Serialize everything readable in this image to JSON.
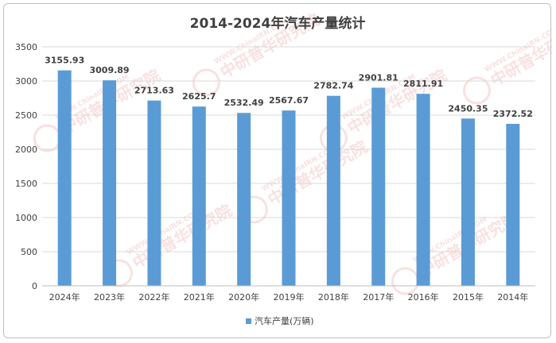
{
  "chart_data": {
    "type": "bar",
    "title": "2014-2024年汽车产量统计",
    "categories": [
      "2024年",
      "2023年",
      "2022年",
      "2021年",
      "2020年",
      "2019年",
      "2018年",
      "2017年",
      "2016年",
      "2015年",
      "2014年"
    ],
    "series": [
      {
        "name": "汽车产量(万辆)",
        "values": [
          3155.93,
          3009.89,
          2713.63,
          2625.7,
          2532.49,
          2567.67,
          2782.74,
          2901.81,
          2811.91,
          2450.35,
          2372.52
        ],
        "labels": [
          "3155.93",
          "3009.89",
          "2713.63",
          "2625.7",
          "2532.49",
          "2567.67",
          "2782.74",
          "2901.81",
          "2811.91",
          "2450.35",
          "2372.52"
        ]
      }
    ],
    "ylim": [
      0,
      3500
    ],
    "yticks": [
      0,
      500,
      1000,
      1500,
      2000,
      2500,
      3000,
      3500
    ],
    "grid": true,
    "legend_position": "bottom",
    "bar_color": "#5b9bd5"
  },
  "watermark": {
    "text": "中研普华研究院",
    "url_text": "WWW.ChinaIRN.COM"
  }
}
